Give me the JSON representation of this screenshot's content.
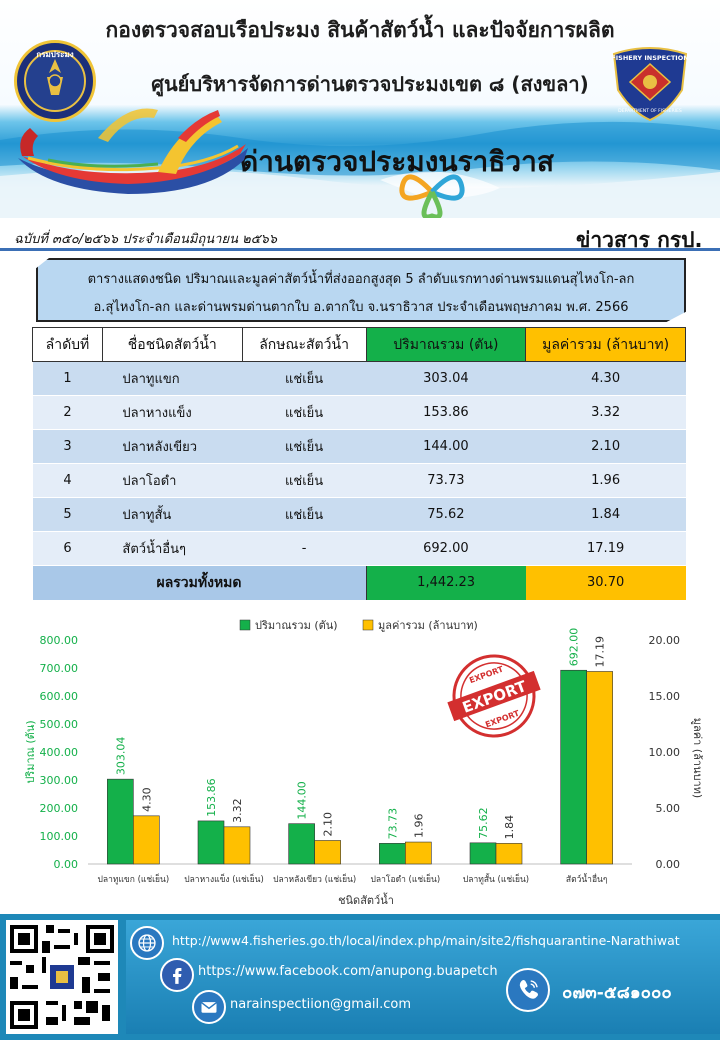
{
  "header": {
    "org_title": "กองตรวจสอบเรือประมง สินค้าสัตว์น้ำ และปัจจัยการผลิต",
    "center_title": "ศูนย์บริหารจัดการด่านตรวจประมงเขต ๘ (สงขลา)",
    "checkpoint_title": "ด่านตรวจประมงนราธิวาส",
    "issue_line": "ฉบับที่ ๓๕๐/๒๕๖๖ ประจำเดือนมิถุนายน ๒๕๖๖",
    "newsletter_label": "ข่าวสาร กรป.",
    "left_logo_text": "กรมประมง",
    "right_logo_text_top": "FISHERY INSPECTION",
    "right_logo_text_bottom": "DEPARTMENT OF FISHERIES"
  },
  "caption": {
    "line1": "ตารางแสดงชนิด ปริมาณและมูลค่าสัตว์น้ำที่ส่งออกสูงสุด 5 ลำดับแรกทางด่านพรมแดนสุไหงโก-ลก",
    "line2": "อ.สุไหงโก-ลก และด่านพรมด่านตากใบ  อ.ตากใบ จ.นราธิวาส ประจำเดือนพฤษภาคม  พ.ศ. 2566"
  },
  "table": {
    "headers": [
      "ลำดับที่",
      "ชื่อชนิดสัตว์น้ำ",
      "ลักษณะสัตว์น้ำ",
      "ปริมาณรวม (ตัน)",
      "มูลค่ารวม (ล้านบาท)"
    ],
    "rows": [
      {
        "rank": "1",
        "name": "ปลาทูแขก",
        "form": "แช่เย็น",
        "qty": "303.04",
        "value": "4.30"
      },
      {
        "rank": "2",
        "name": "ปลาหางแข็ง",
        "form": "แช่เย็น",
        "qty": "153.86",
        "value": "3.32"
      },
      {
        "rank": "3",
        "name": "ปลาหลังเขียว",
        "form": "แช่เย็น",
        "qty": "144.00",
        "value": "2.10"
      },
      {
        "rank": "4",
        "name": "ปลาโอดำ",
        "form": "แช่เย็น",
        "qty": "73.73",
        "value": "1.96"
      },
      {
        "rank": "5",
        "name": "ปลาทูสั้น",
        "form": "แช่เย็น",
        "qty": "75.62",
        "value": "1.84"
      },
      {
        "rank": "6",
        "name": "สัตว์น้ำอื่นๆ",
        "form": "-",
        "qty": "692.00",
        "value": "17.19"
      }
    ],
    "total_label": "ผลรวมทั้งหมด",
    "total_qty": "1,442.23",
    "total_value": "30.70"
  },
  "chart_data": {
    "type": "bar",
    "categories": [
      "ปลาทูแขก (แช่เย็น)",
      "ปลาหางแข็ง (แช่เย็น)",
      "ปลาหลังเขียว (แช่เย็น)",
      "ปลาโอดำ (แช่เย็น)",
      "ปลาทูสั้น (แช่เย็น)",
      "สัตว์น้ำอื่นๆ"
    ],
    "series": [
      {
        "name": "ปริมาณรวม (ตัน)",
        "axis": "left",
        "color": "#14b04a",
        "values": [
          303.04,
          153.86,
          144.0,
          73.73,
          75.62,
          692.0
        ],
        "labels": [
          "303.04",
          "153.86",
          "144.00",
          "73.73",
          "75.62",
          "692.00"
        ]
      },
      {
        "name": "มูลค่ารวม (ล้านบาท)",
        "axis": "right",
        "color": "#ffc000",
        "values": [
          4.3,
          3.32,
          2.1,
          1.96,
          1.84,
          17.19
        ],
        "labels": [
          "4.30",
          "3.32",
          "2.10",
          "1.96",
          "1.84",
          "17.19"
        ]
      }
    ],
    "xlabel": "ชนิดสัตว์น้ำ",
    "ylabel_left": "ปริมาณ (ตัน)",
    "ylabel_right": "มูลค่า (ล้านบาท)",
    "ylim_left": [
      0,
      800
    ],
    "ylim_right": [
      0,
      20
    ],
    "yticks_left": [
      "0.00",
      "100.00",
      "200.00",
      "300.00",
      "400.00",
      "500.00",
      "600.00",
      "700.00",
      "800.00"
    ],
    "yticks_right": [
      "0.00",
      "5.00",
      "10.00",
      "15.00",
      "20.00"
    ],
    "legend_position": "top-center",
    "grid": false,
    "stamp_top": "EXPORT",
    "stamp_middle": "EXPORT",
    "stamp_bottom": "EXPORT"
  },
  "footer": {
    "website": "http://www4.fisheries.go.th/local/index.php/main/site2/fishquarantine-Narathiwat",
    "facebook": "https://www.facebook.com/anupong.buapetch",
    "email": "narainspectiion@gmail.com",
    "phone": "๐๗๓-๕๘๑๐๐๐"
  },
  "colors": {
    "qty": "#14b04a",
    "value": "#ffc000",
    "table_row": "#c9dcf0",
    "footer": "#1e88b8"
  }
}
